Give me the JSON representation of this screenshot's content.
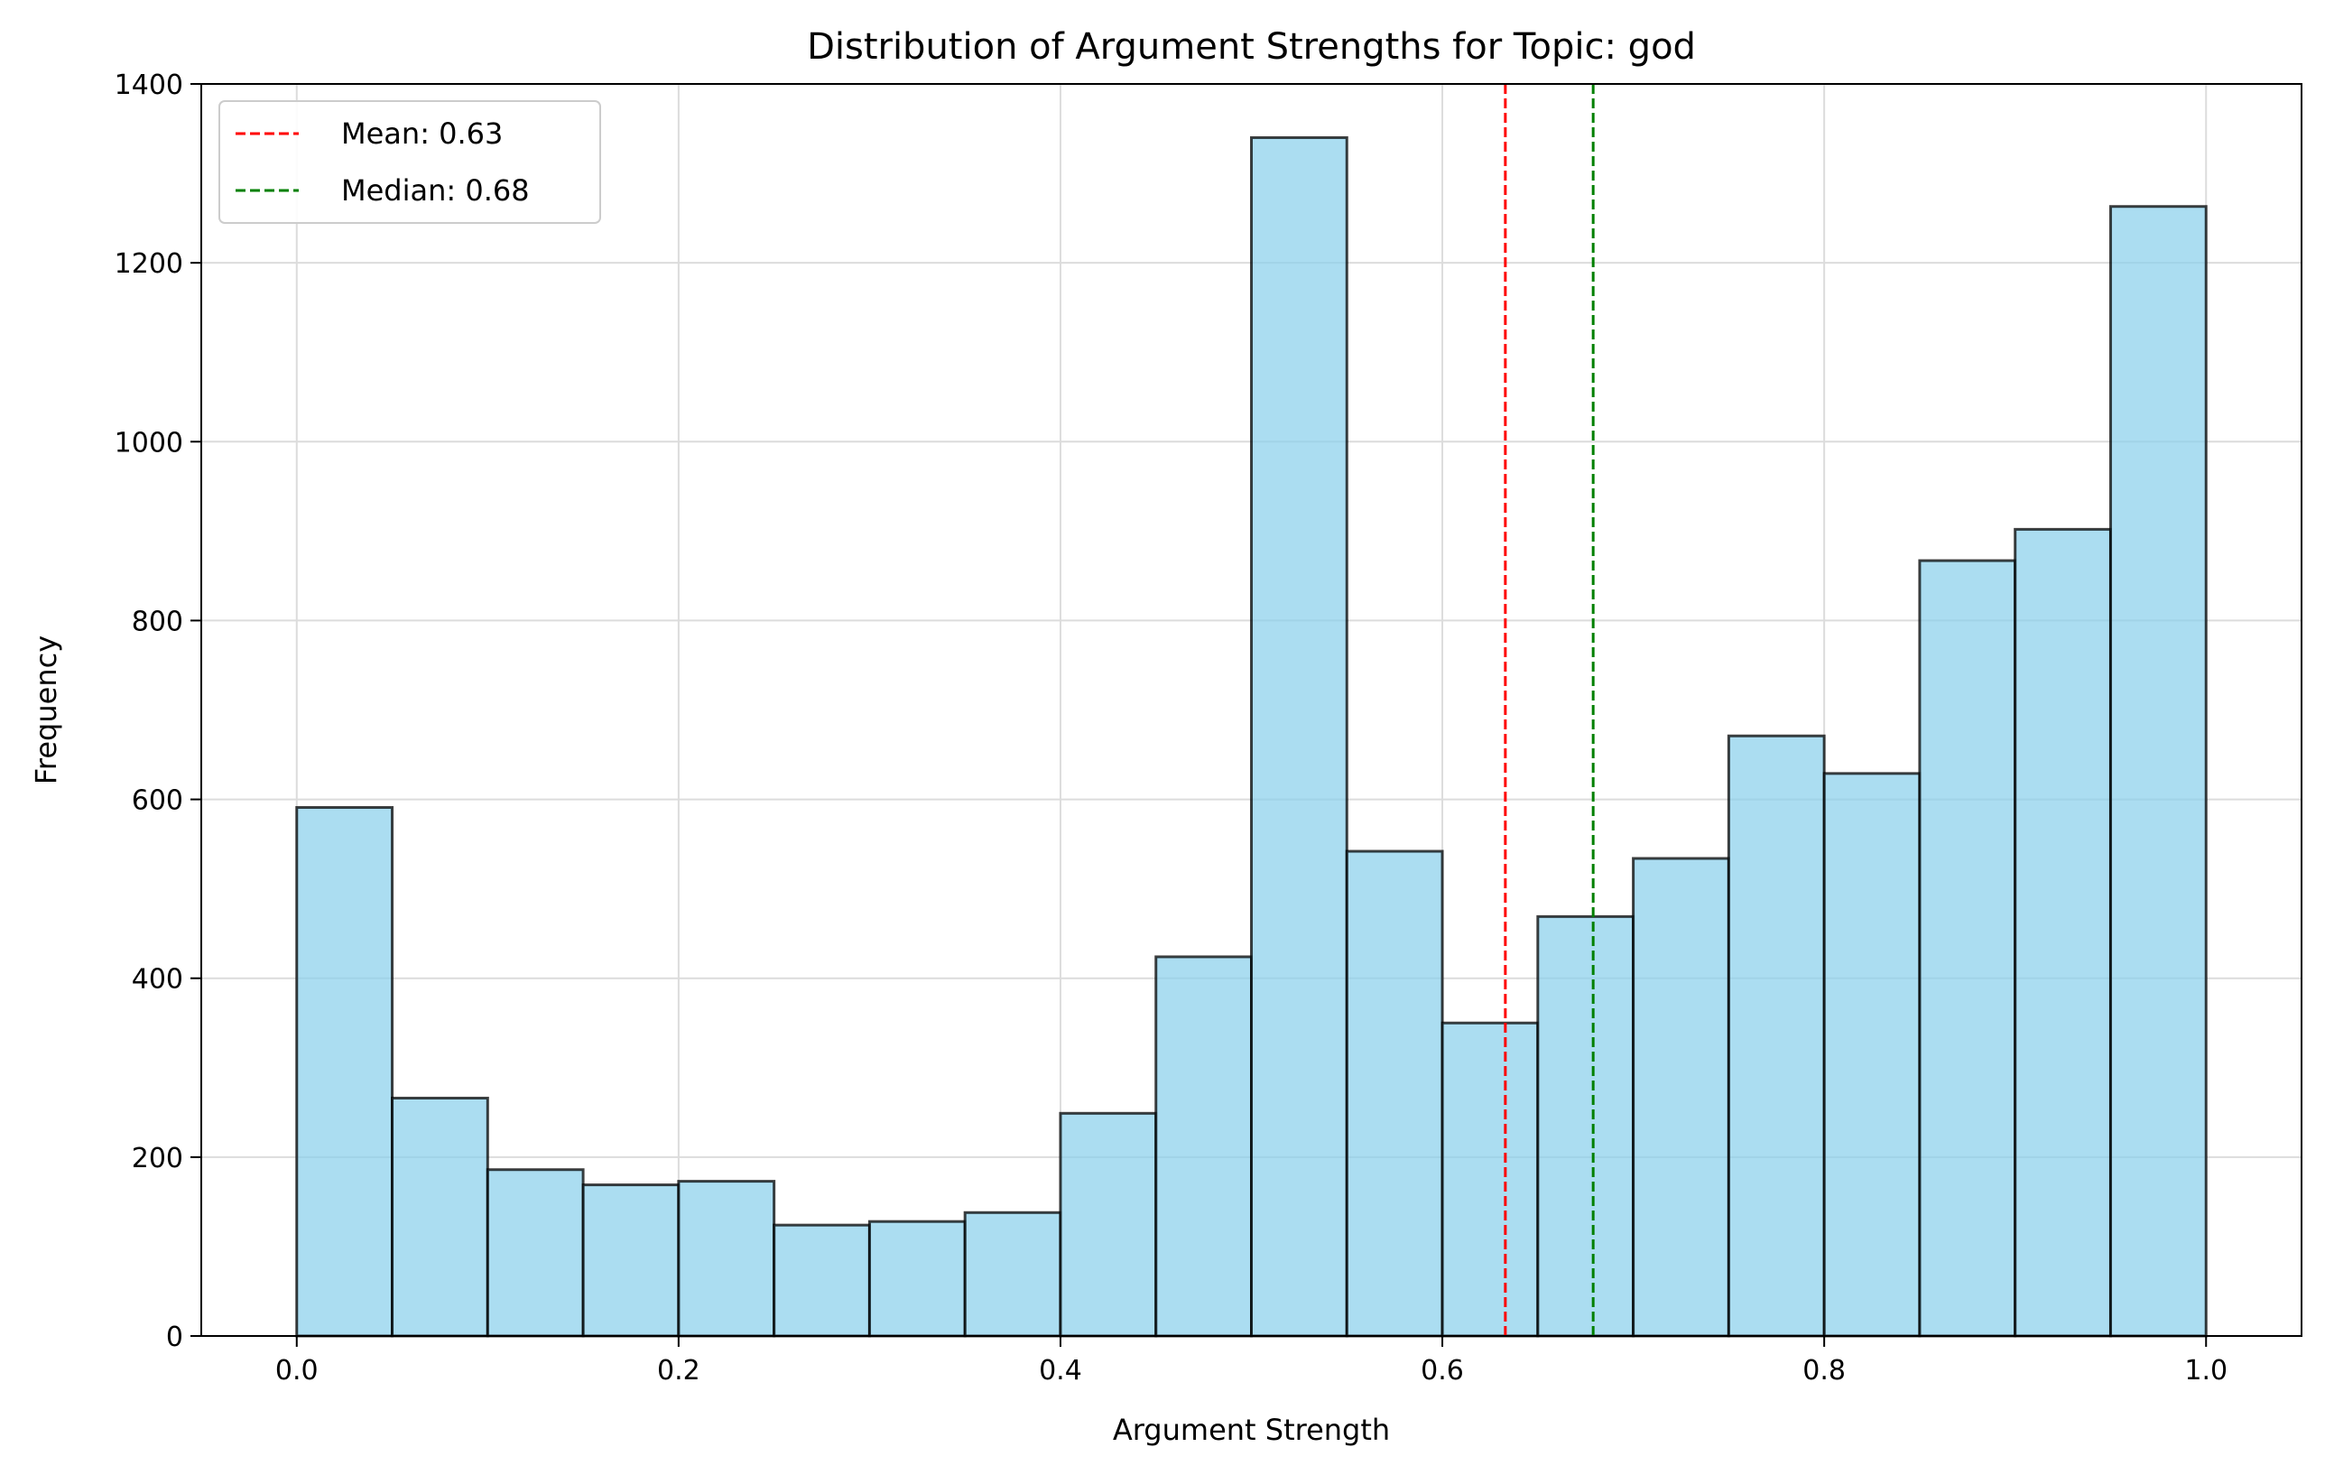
{
  "chart_data": {
    "type": "bar",
    "title": "Distribution of Argument Strengths for Topic: god",
    "xlabel": "Argument Strength",
    "ylabel": "Frequency",
    "xlim": [
      -0.05,
      1.05
    ],
    "ylim": [
      0,
      1400
    ],
    "xticks": [
      "0.0",
      "0.2",
      "0.4",
      "0.6",
      "0.8",
      "1.0"
    ],
    "yticks": [
      "0",
      "200",
      "400",
      "600",
      "800",
      "1000",
      "1200",
      "1400"
    ],
    "grid": true,
    "legend_position": "top-left",
    "bin_edges": [
      0.0,
      0.05,
      0.1,
      0.15,
      0.2,
      0.25,
      0.3,
      0.35,
      0.4,
      0.45,
      0.5,
      0.55,
      0.6,
      0.65,
      0.7,
      0.75,
      0.8,
      0.85,
      0.9,
      0.95,
      1.0
    ],
    "values": [
      591,
      266,
      186,
      169,
      173,
      124,
      128,
      138,
      249,
      424,
      1340,
      542,
      350,
      469,
      534,
      671,
      629,
      867,
      902,
      1263
    ],
    "bar_color": "#87ceeb",
    "bar_edge_color": "#000000",
    "reference_lines": [
      {
        "label": "Mean: 0.63",
        "value": 0.633,
        "color": "#ff0000"
      },
      {
        "label": "Median: 0.68",
        "value": 0.679,
        "color": "#008000"
      }
    ]
  }
}
